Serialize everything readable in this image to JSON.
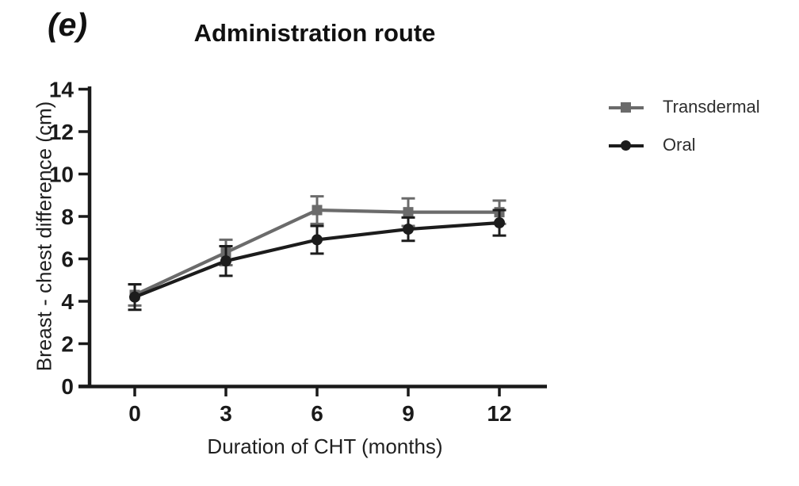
{
  "panel_label": "(e)",
  "chart_data": {
    "type": "line",
    "title": "Administration route",
    "xlabel": "Duration of CHT (months)",
    "ylabel": "Breast - chest difference (cm)",
    "x": [
      0,
      3,
      6,
      9,
      12
    ],
    "xticks": [
      0,
      3,
      6,
      9,
      12
    ],
    "yticks": [
      0,
      2,
      4,
      6,
      8,
      10,
      12,
      14
    ],
    "ylim": [
      0,
      14
    ],
    "xlim": [
      0,
      13.5
    ],
    "grid": false,
    "legend_position": "right",
    "error_bars": true,
    "axis_color": "#1a1a1a",
    "series": [
      {
        "name": "Transdermal",
        "marker": "square",
        "color": "#6b6b6b",
        "values": [
          4.3,
          6.3,
          8.3,
          8.2,
          8.2
        ],
        "errors": [
          0.5,
          0.6,
          0.65,
          0.65,
          0.55
        ]
      },
      {
        "name": "Oral",
        "marker": "circle",
        "color": "#1c1c1c",
        "values": [
          4.2,
          5.9,
          6.9,
          7.4,
          7.7
        ],
        "errors": [
          0.6,
          0.7,
          0.65,
          0.55,
          0.6
        ]
      }
    ]
  }
}
